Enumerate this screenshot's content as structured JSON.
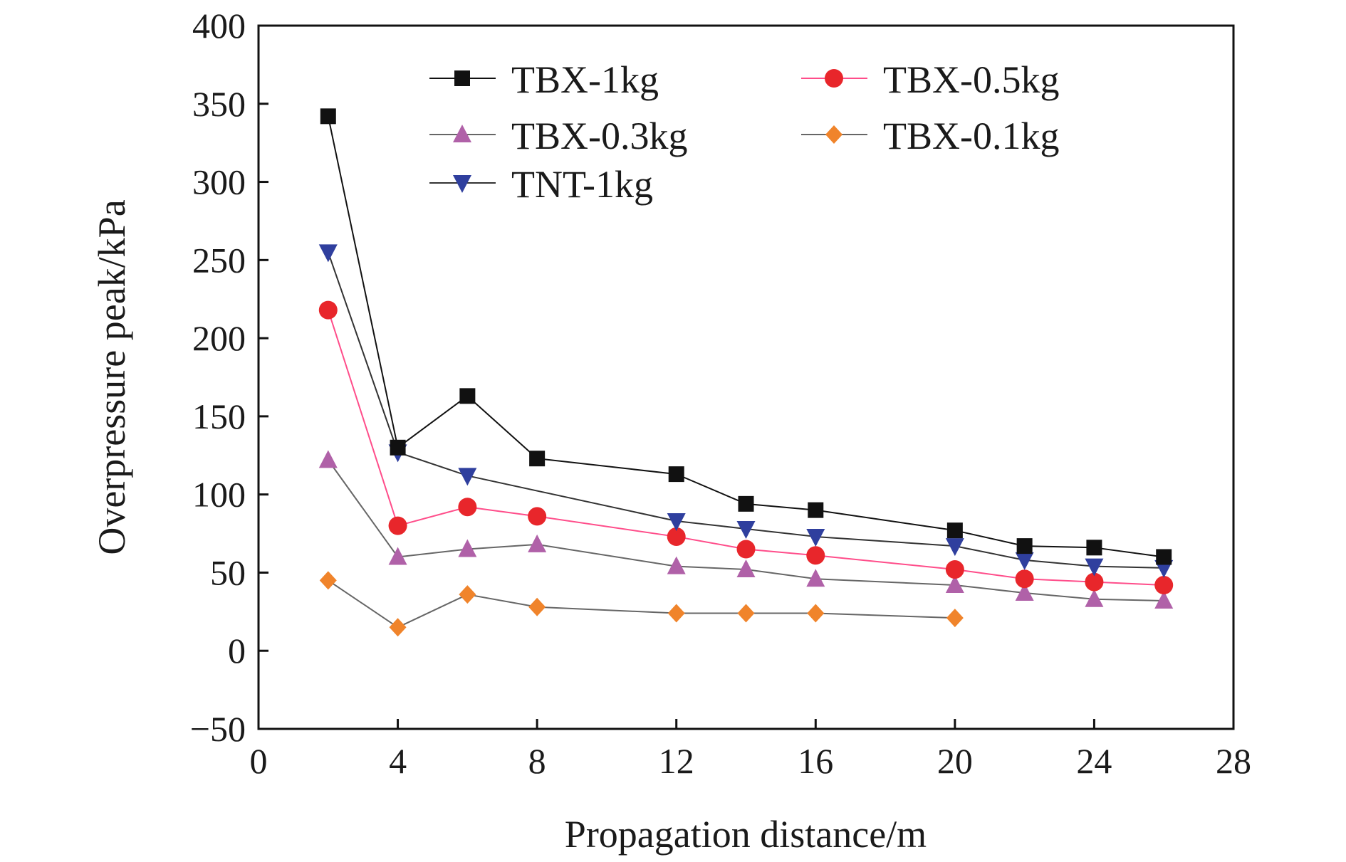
{
  "chart_data": {
    "type": "line",
    "xlabel": "Propagation distance/m",
    "ylabel": "Overpressure peak/kPa",
    "xlim": [
      0,
      28
    ],
    "ylim": [
      -50,
      400
    ],
    "xticks": [
      0,
      4,
      8,
      12,
      16,
      20,
      24,
      28
    ],
    "yticks": [
      -50,
      0,
      50,
      100,
      150,
      200,
      250,
      300,
      350,
      400
    ],
    "xtick_labels": [
      "0",
      "4",
      "8",
      "12",
      "16",
      "20",
      "24",
      "28"
    ],
    "ytick_labels": [
      "−50",
      "0",
      "50",
      "100",
      "150",
      "200",
      "250",
      "300",
      "350",
      "400"
    ],
    "grid": false,
    "legend_position": "top-right",
    "series": [
      {
        "name": "TBX-1kg",
        "marker": "square",
        "color": "#111111",
        "line_color": "#111111",
        "x": [
          2,
          4,
          6,
          8,
          12,
          14,
          16,
          20,
          22,
          24,
          26
        ],
        "values": [
          342,
          130,
          163,
          123,
          113,
          94,
          90,
          77,
          67,
          66,
          60
        ]
      },
      {
        "name": "TBX-0.5kg",
        "marker": "circle",
        "color": "#e8262b",
        "line_color": "#ff4d8a",
        "x": [
          2,
          4,
          6,
          8,
          12,
          14,
          16,
          20,
          22,
          24,
          26
        ],
        "values": [
          218,
          80,
          92,
          86,
          73,
          65,
          61,
          52,
          46,
          44,
          42
        ]
      },
      {
        "name": "TBX-0.3kg",
        "marker": "triangle-up",
        "color": "#b061a8",
        "line_color": "#666666",
        "x": [
          2,
          4,
          6,
          8,
          12,
          14,
          16,
          20,
          22,
          24,
          26
        ],
        "values": [
          122,
          60,
          65,
          68,
          54,
          52,
          46,
          42,
          37,
          33,
          32
        ]
      },
      {
        "name": "TBX-0.1kg",
        "marker": "diamond",
        "color": "#f0842b",
        "line_color": "#666666",
        "x": [
          2,
          4,
          6,
          8,
          12,
          14,
          16,
          20
        ],
        "values": [
          45,
          15,
          36,
          28,
          24,
          24,
          24,
          21
        ]
      },
      {
        "name": "TNT-1kg",
        "marker": "triangle-down",
        "color": "#2f3f9e",
        "line_color": "#333333",
        "x": [
          2,
          4,
          6,
          12,
          14,
          16,
          20,
          22,
          24,
          26
        ],
        "values": [
          255,
          127,
          112,
          83,
          78,
          73,
          67,
          58,
          54,
          53
        ]
      }
    ]
  }
}
